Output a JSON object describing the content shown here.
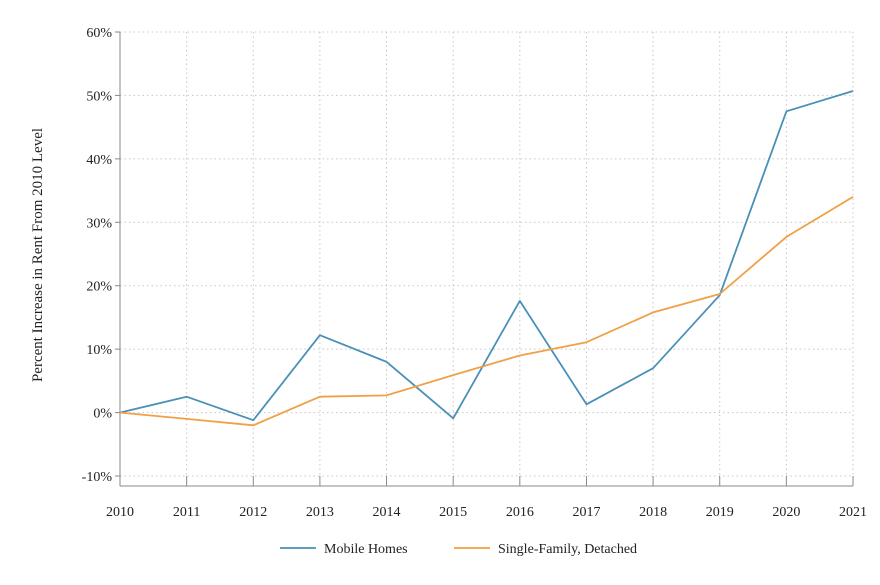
{
  "chart_data": {
    "type": "line",
    "title": "",
    "xlabel": "",
    "ylabel": "Percent Increase in Rent From 2010 Level",
    "x": [
      2010,
      2011,
      2012,
      2013,
      2014,
      2015,
      2016,
      2017,
      2018,
      2019,
      2020,
      2021
    ],
    "ylim": [
      -10,
      60
    ],
    "yticks": [
      -10,
      0,
      10,
      20,
      30,
      40,
      50,
      60
    ],
    "ytick_labels": [
      "-10%",
      "0%",
      "10%",
      "20%",
      "30%",
      "40%",
      "50%",
      "60%"
    ],
    "xtick_labels": [
      "2010",
      "2011",
      "2012",
      "2013",
      "2014",
      "2015",
      "2016",
      "2017",
      "2018",
      "2019",
      "2020",
      "2021"
    ],
    "grid": true,
    "legend_position": "bottom",
    "series": [
      {
        "name": "Mobile Homes",
        "color": "#4a90b8",
        "values": [
          0,
          2.5,
          -1.2,
          12.2,
          8.0,
          -0.9,
          17.6,
          1.3,
          7.0,
          18.5,
          47.5,
          50.7
        ]
      },
      {
        "name": "Single-Family, Detached",
        "color": "#f0a045",
        "values": [
          0,
          -1.0,
          -2.0,
          2.5,
          2.7,
          5.9,
          9.0,
          11.1,
          15.8,
          18.7,
          27.7,
          34.0
        ]
      }
    ]
  }
}
